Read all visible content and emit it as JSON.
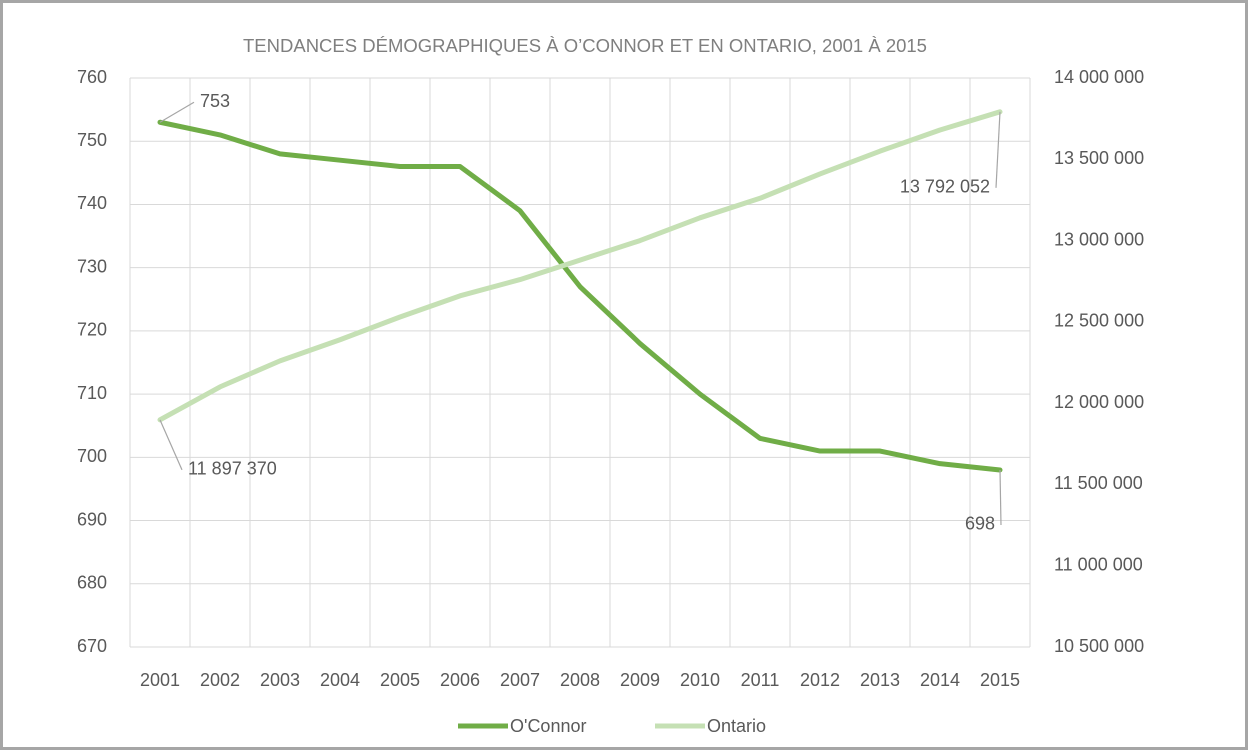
{
  "chart_data": {
    "type": "line",
    "title": "TENDANCES DÉMOGRAPHIQUES À O’CONNOR ET EN ONTARIO, 2001 À 2015",
    "categories": [
      "2001",
      "2002",
      "2003",
      "2004",
      "2005",
      "2006",
      "2007",
      "2008",
      "2009",
      "2010",
      "2011",
      "2012",
      "2013",
      "2014",
      "2015"
    ],
    "series": [
      {
        "name": "O'Connor",
        "color": "#70ad47",
        "values": [
          753,
          751,
          748,
          747,
          746,
          746,
          739,
          727,
          718,
          710,
          703,
          701,
          701,
          699,
          698
        ],
        "value_labels": [
          "753",
          null,
          null,
          null,
          null,
          null,
          null,
          null,
          null,
          null,
          null,
          null,
          null,
          null,
          "698"
        ]
      },
      {
        "name": "Ontario",
        "color": "#c5e0b4",
        "axis": "y2",
        "values": [
          11897370,
          12100000,
          12260000,
          12390000,
          12530000,
          12660000,
          12760000,
          12880000,
          13000000,
          13140000,
          13260000,
          13410000,
          13550000,
          13680000,
          13792052
        ],
        "value_labels": [
          "11 897 370",
          null,
          null,
          null,
          null,
          null,
          null,
          null,
          null,
          null,
          null,
          null,
          null,
          null,
          "13 792 052"
        ]
      }
    ],
    "ylim": [
      670,
      760
    ],
    "yticks": [
      670,
      680,
      690,
      700,
      710,
      720,
      730,
      740,
      750,
      760
    ],
    "y2lim": [
      10500000,
      14000000
    ],
    "y2ticks": [
      {
        "value": 10500000,
        "label": "10 500 000"
      },
      {
        "value": 11000000,
        "label": "11 000 000"
      },
      {
        "value": 11500000,
        "label": "11 500 000"
      },
      {
        "value": 12000000,
        "label": "12 000 000"
      },
      {
        "value": 12500000,
        "label": "12 500 000"
      },
      {
        "value": 13000000,
        "label": "13 000 000"
      },
      {
        "value": 13500000,
        "label": "13 500 000"
      },
      {
        "value": 14000000,
        "label": "14 000 000"
      }
    ],
    "grid": true,
    "legend": "bottom"
  }
}
